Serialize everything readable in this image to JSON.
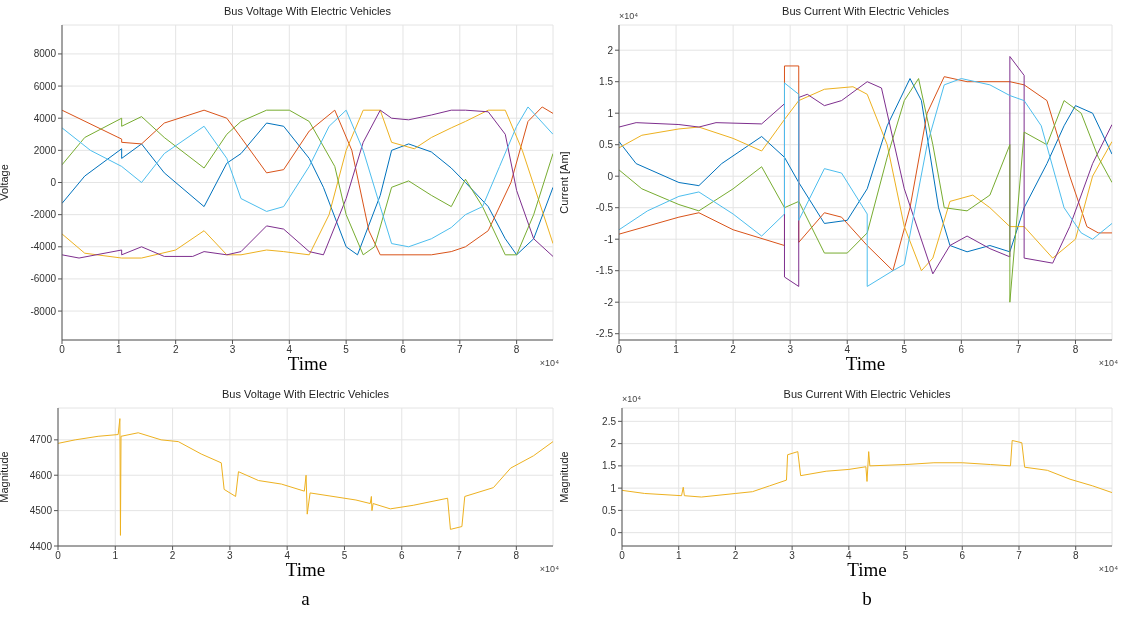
{
  "chart_data": [
    {
      "type": "line",
      "title": "Bus Voltage With Electric Vehicles",
      "xlabel": "Time",
      "ylabel": "Voltage",
      "xlim": [
        0,
        8.64
      ],
      "xticks": [
        0,
        1,
        2,
        3,
        4,
        5,
        6,
        7,
        8
      ],
      "ylim": [
        -9800,
        9800
      ],
      "yticks": [
        -8000,
        -6000,
        -4000,
        -2000,
        0,
        2000,
        4000,
        6000,
        8000
      ],
      "grid": true,
      "annotations": [
        "×10⁴"
      ],
      "series": [
        {
          "color": "#0072bd",
          "x": [
            0,
            0.4,
            1.05,
            1.05,
            1.4,
            1.8,
            2.5,
            2.9,
            3.15,
            3.6,
            3.9,
            4.35,
            4.6,
            5.0,
            5.2,
            5.6,
            5.8,
            6.1,
            6.5,
            6.85,
            7.1,
            7.5,
            7.8,
            8.0,
            8.3,
            8.64
          ],
          "values": [
            -1300,
            400,
            2100,
            1500,
            2400,
            600,
            -1500,
            1200,
            1800,
            3700,
            3500,
            1500,
            -300,
            -4000,
            -4500,
            -800,
            2000,
            2400,
            1900,
            900,
            0,
            -1500,
            -3500,
            -4500,
            -3500,
            -300
          ]
        },
        {
          "color": "#d95319",
          "x": [
            0,
            1.05,
            1.05,
            1.4,
            1.8,
            2.5,
            2.9,
            3.15,
            3.6,
            3.9,
            4.35,
            4.8,
            5.1,
            5.4,
            5.6,
            6.5,
            6.85,
            7.1,
            7.5,
            7.9,
            8.2,
            8.45,
            8.64
          ],
          "values": [
            4500,
            2700,
            2500,
            2400,
            3700,
            4500,
            4000,
            2800,
            600,
            800,
            3200,
            4500,
            2000,
            -3000,
            -4500,
            -4500,
            -4300,
            -4000,
            -3000,
            0,
            3800,
            4700,
            4300
          ]
        },
        {
          "color": "#edb120",
          "x": [
            0,
            0.4,
            1.05,
            1.4,
            2.0,
            2.5,
            2.9,
            3.15,
            3.6,
            3.9,
            4.35,
            4.7,
            5.0,
            5.3,
            5.6,
            5.8,
            6.2,
            6.5,
            6.85,
            7.1,
            7.5,
            7.8,
            8.1,
            8.64
          ],
          "values": [
            -3200,
            -4400,
            -4700,
            -4700,
            -4200,
            -3000,
            -4500,
            -4500,
            -4200,
            -4300,
            -4500,
            -2000,
            2000,
            4500,
            4500,
            2500,
            2100,
            2800,
            3400,
            3800,
            4500,
            4500,
            2000,
            -3800
          ]
        },
        {
          "color": "#7e2f8e",
          "x": [
            0,
            0.3,
            1.05,
            1.05,
            1.4,
            1.8,
            2.3,
            2.5,
            2.9,
            3.15,
            3.6,
            3.9,
            4.35,
            4.6,
            5.0,
            5.3,
            5.6,
            5.8,
            6.1,
            6.5,
            6.85,
            7.1,
            7.5,
            7.8,
            8.0,
            8.3,
            8.64
          ],
          "values": [
            -4500,
            -4700,
            -4200,
            -4500,
            -4000,
            -4600,
            -4600,
            -4300,
            -4500,
            -4300,
            -2700,
            -2900,
            -4300,
            -4500,
            -1000,
            2500,
            4500,
            4000,
            3900,
            4200,
            4500,
            4500,
            4400,
            3000,
            -500,
            -3500,
            -4600
          ]
        },
        {
          "color": "#77ac30",
          "x": [
            0,
            0.4,
            1.05,
            1.05,
            1.4,
            1.8,
            2.5,
            2.9,
            3.15,
            3.6,
            4.0,
            4.35,
            4.8,
            5.0,
            5.3,
            5.5,
            5.8,
            6.1,
            6.5,
            6.85,
            7.1,
            7.4,
            7.8,
            8.0,
            8.3,
            8.64
          ],
          "values": [
            1100,
            2800,
            4000,
            3500,
            4100,
            2800,
            900,
            3000,
            3800,
            4500,
            4500,
            3800,
            1000,
            -2000,
            -4500,
            -4000,
            -300,
            100,
            -800,
            -1500,
            200,
            -1500,
            -4500,
            -4500,
            -2000,
            1800
          ]
        },
        {
          "color": "#4dbeee",
          "x": [
            0,
            0.5,
            1.05,
            1.4,
            1.8,
            2.5,
            2.9,
            3.15,
            3.6,
            3.9,
            4.35,
            4.7,
            5.0,
            5.3,
            5.6,
            5.8,
            6.1,
            6.5,
            6.85,
            7.1,
            7.4,
            7.7,
            8.0,
            8.2,
            8.64
          ],
          "values": [
            3400,
            2000,
            1000,
            0,
            1800,
            3500,
            1500,
            -1000,
            -1800,
            -1500,
            1000,
            3500,
            4500,
            2000,
            -1500,
            -3800,
            -4000,
            -3500,
            -2800,
            -2000,
            -1500,
            1000,
            3500,
            4700,
            3000
          ]
        }
      ]
    },
    {
      "type": "line",
      "title": "Bus Current With Electric Vehicles",
      "xlabel": "Time",
      "ylabel": "Current [Am]",
      "xlim": [
        0,
        8.64
      ],
      "xticks": [
        0,
        1,
        2,
        3,
        4,
        5,
        6,
        7,
        8
      ],
      "ylim": [
        -2.6,
        2.4
      ],
      "yticks": [
        -2.5,
        -2,
        -1.5,
        -1,
        -0.5,
        0,
        0.5,
        1,
        1.5,
        2
      ],
      "grid": true,
      "annotations": [
        "×10⁴",
        "×10⁴"
      ],
      "series": [
        {
          "color": "#0072bd",
          "x": [
            0,
            0.3,
            1.05,
            1.4,
            1.8,
            2.5,
            2.9,
            3.15,
            3.6,
            4.0,
            4.35,
            4.7,
            5.1,
            5.3,
            5.6,
            5.8,
            6.1,
            6.5,
            6.85,
            7.1,
            7.5,
            7.8,
            8.0,
            8.3,
            8.64
          ],
          "values": [
            0.55,
            0.2,
            -0.1,
            -0.15,
            0.2,
            0.63,
            0.3,
            -0.1,
            -0.75,
            -0.7,
            -0.2,
            0.8,
            1.55,
            1.2,
            -0.5,
            -1.1,
            -1.2,
            -1.1,
            -1.2,
            -0.5,
            0.2,
            0.8,
            1.12,
            1,
            0.35
          ]
        },
        {
          "color": "#d95319",
          "x": [
            0,
            1.05,
            1.4,
            2.0,
            2.9,
            2.9,
            3.15,
            3.15,
            3.6,
            3.9,
            4.35,
            4.8,
            5.1,
            5.4,
            5.7,
            6.1,
            6.85,
            7.1,
            7.5,
            7.9,
            8.2,
            8.4,
            8.64
          ],
          "values": [
            -0.92,
            -0.65,
            -0.58,
            -0.85,
            -1.1,
            1.75,
            1.75,
            -1.05,
            -0.58,
            -0.65,
            -1.1,
            -1.5,
            -0.5,
            1,
            1.58,
            1.5,
            1.5,
            1.45,
            1.2,
            0,
            -0.8,
            -0.9,
            -0.9
          ]
        },
        {
          "color": "#edb120",
          "x": [
            0,
            0.4,
            1.05,
            1.4,
            2.0,
            2.5,
            2.9,
            3.15,
            3.6,
            4.1,
            4.35,
            4.7,
            5.0,
            5.3,
            5.5,
            5.8,
            6.2,
            6.5,
            6.85,
            7.1,
            7.6,
            8.0,
            8.3,
            8.64
          ],
          "values": [
            0.45,
            0.65,
            0.75,
            0.78,
            0.6,
            0.4,
            0.9,
            1.2,
            1.38,
            1.42,
            1.3,
            0.5,
            -0.8,
            -1.5,
            -1.3,
            -0.4,
            -0.3,
            -0.5,
            -0.8,
            -0.8,
            -1.3,
            -1,
            0,
            0.55
          ]
        },
        {
          "color": "#7e2f8e",
          "x": [
            0,
            0.3,
            1.05,
            1.4,
            1.7,
            2.5,
            2.9,
            2.9,
            3.15,
            3.15,
            3.3,
            3.6,
            3.9,
            4.35,
            4.6,
            5.0,
            5.5,
            5.8,
            6.1,
            6.5,
            6.85,
            6.85,
            7.1,
            7.1,
            7.6,
            7.9,
            8.3,
            8.64
          ],
          "values": [
            0.78,
            0.85,
            0.82,
            0.78,
            0.85,
            0.83,
            1.15,
            -1.6,
            -1.75,
            1.25,
            1.3,
            1.12,
            1.2,
            1.5,
            1.4,
            -0.2,
            -1.55,
            -1.1,
            -0.95,
            -1.15,
            -1.28,
            1.9,
            1.6,
            -1.3,
            -1.38,
            -0.8,
            0.2,
            0.82
          ]
        },
        {
          "color": "#77ac30",
          "x": [
            0,
            0.4,
            1.05,
            1.4,
            2.0,
            2.5,
            2.9,
            3.15,
            3.6,
            4.0,
            4.35,
            4.7,
            5.0,
            5.25,
            5.5,
            5.7,
            6.1,
            6.5,
            6.85,
            6.85,
            7.1,
            7.5,
            7.8,
            8.1,
            8.4,
            8.64
          ],
          "values": [
            0.1,
            -0.2,
            -0.45,
            -0.55,
            -0.2,
            0.15,
            -0.5,
            -0.4,
            -1.22,
            -1.22,
            -0.9,
            0.3,
            1.2,
            1.55,
            0.5,
            -0.5,
            -0.55,
            -0.3,
            0.5,
            -2,
            0.7,
            0.5,
            1.2,
            1,
            0.3,
            -0.1
          ]
        },
        {
          "color": "#4dbeee",
          "x": [
            0,
            0.5,
            1.05,
            1.4,
            2.0,
            2.5,
            2.9,
            2.9,
            3.15,
            3.15,
            3.6,
            3.9,
            4.35,
            4.35,
            4.8,
            5.0,
            5.4,
            5.7,
            6.0,
            6.5,
            6.85,
            7.1,
            7.4,
            7.8,
            8.1,
            8.3,
            8.64
          ],
          "values": [
            -0.85,
            -0.55,
            -0.32,
            -0.25,
            -0.6,
            -0.95,
            -0.6,
            1.48,
            1.3,
            -0.7,
            0.12,
            0.05,
            -0.6,
            -1.75,
            -1.5,
            -1.4,
            0.5,
            1.45,
            1.55,
            1.45,
            1.28,
            1.2,
            0.8,
            -0.5,
            -0.9,
            -1,
            -0.75
          ]
        }
      ]
    },
    {
      "type": "line",
      "title": "Bus Voltage With Electric Vehicles",
      "xlabel": "Time",
      "ylabel": "Magnitude",
      "xlim": [
        0,
        8.64
      ],
      "xticks": [
        0,
        1,
        2,
        3,
        4,
        5,
        6,
        7,
        8
      ],
      "ylim": [
        4400,
        4790
      ],
      "yticks": [
        4400,
        4500,
        4600,
        4700
      ],
      "grid": true,
      "annotations": [
        "×10⁴",
        "a"
      ],
      "series": [
        {
          "color": "#edb120",
          "x": [
            0,
            0.3,
            0.7,
            1.05,
            1.08,
            1.09,
            1.1,
            1.4,
            1.8,
            2.1,
            2.5,
            2.85,
            2.9,
            3.1,
            3.15,
            3.5,
            3.9,
            4.3,
            4.33,
            4.35,
            4.4,
            4.8,
            5.2,
            5.45,
            5.47,
            5.48,
            5.5,
            5.8,
            6.2,
            6.8,
            6.85,
            7.05,
            7.1,
            7.6,
            7.9,
            8.3,
            8.64
          ],
          "values": [
            4690,
            4700,
            4710,
            4715,
            4760,
            4430,
            4710,
            4720,
            4700,
            4695,
            4660,
            4635,
            4560,
            4540,
            4610,
            4585,
            4575,
            4555,
            4600,
            4490,
            4550,
            4540,
            4530,
            4520,
            4540,
            4500,
            4520,
            4505,
            4515,
            4535,
            4447,
            4455,
            4540,
            4565,
            4620,
            4655,
            4695
          ]
        }
      ]
    },
    {
      "type": "line",
      "title": "Bus Current With Electric Vehicles",
      "xlabel": "Time",
      "ylabel": "Magnitude",
      "xlim": [
        0,
        8.64
      ],
      "xticks": [
        0,
        1,
        2,
        3,
        4,
        5,
        6,
        7,
        8
      ],
      "ylim": [
        -0.3,
        2.8
      ],
      "yticks": [
        0,
        0.5,
        1,
        1.5,
        2,
        2.5
      ],
      "grid": true,
      "annotations": [
        "×10⁴",
        "×10⁴",
        "b"
      ],
      "series": [
        {
          "color": "#edb120",
          "x": [
            0,
            0.4,
            1.05,
            1.08,
            1.1,
            1.4,
            2.0,
            2.3,
            2.6,
            2.9,
            2.92,
            3.1,
            3.15,
            3.6,
            4.0,
            4.3,
            4.32,
            4.35,
            4.37,
            5.0,
            5.5,
            6.0,
            6.5,
            6.85,
            6.88,
            7.05,
            7.1,
            7.5,
            7.9,
            8.3,
            8.64
          ],
          "values": [
            0.95,
            0.88,
            0.83,
            1.02,
            0.83,
            0.8,
            0.88,
            0.92,
            1.05,
            1.18,
            1.75,
            1.82,
            1.28,
            1.38,
            1.42,
            1.48,
            1.15,
            1.82,
            1.5,
            1.53,
            1.57,
            1.57,
            1.53,
            1.5,
            2.07,
            2.02,
            1.47,
            1.4,
            1.2,
            1.05,
            0.9
          ]
        }
      ]
    }
  ]
}
